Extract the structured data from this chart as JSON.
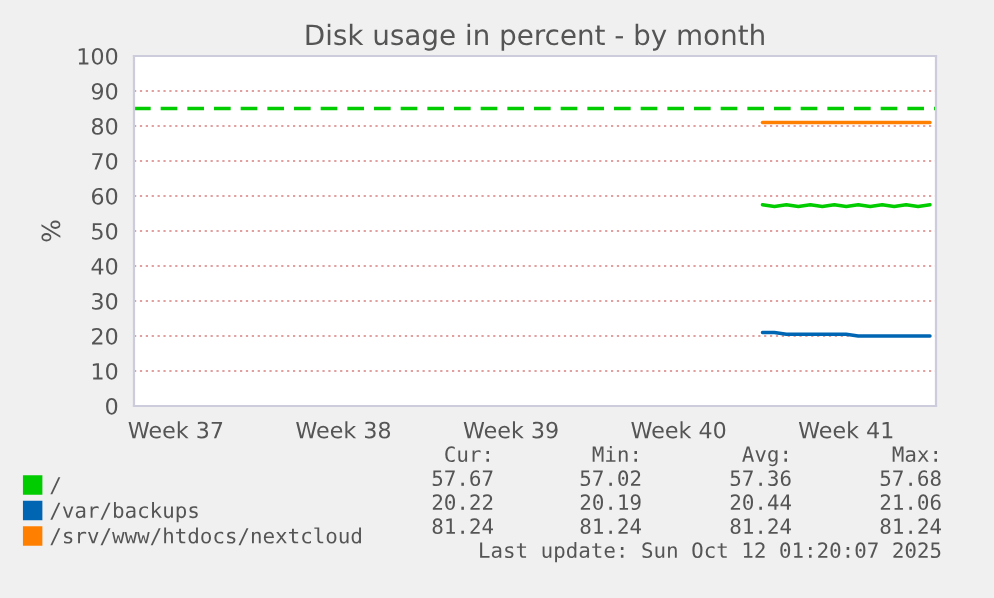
{
  "chart_data": {
    "type": "line",
    "title": "Disk usage in percent - by month",
    "ylabel": "%",
    "categories": [
      null,
      null,
      null,
      "Week 37",
      null,
      null,
      null,
      null,
      null,
      null,
      null,
      null,
      null,
      null,
      null,
      null,
      null,
      "Week 38",
      null,
      null,
      null,
      null,
      null,
      null,
      null,
      null,
      null,
      null,
      null,
      null,
      null,
      "Week 39",
      null,
      null,
      null,
      null,
      null,
      null,
      null,
      null,
      null,
      null,
      null,
      null,
      null,
      "Week 40",
      null,
      null,
      null,
      null,
      null,
      null,
      null,
      null,
      null,
      null,
      null,
      null,
      null,
      "Week 41",
      null,
      null,
      null,
      null,
      null,
      null,
      null
    ],
    "ylim": [
      0,
      100
    ],
    "yticks": [
      0,
      10,
      20,
      30,
      40,
      50,
      60,
      70,
      80,
      90,
      100
    ],
    "grid": "y",
    "legend": "bottom",
    "series": [
      {
        "name": "/",
        "color": "#00cc00",
        "values": [
          null,
          null,
          null,
          null,
          null,
          null,
          null,
          null,
          null,
          null,
          null,
          null,
          null,
          null,
          null,
          null,
          null,
          null,
          null,
          null,
          null,
          null,
          null,
          null,
          null,
          null,
          null,
          null,
          null,
          null,
          null,
          null,
          null,
          null,
          null,
          null,
          null,
          null,
          null,
          null,
          null,
          null,
          null,
          null,
          null,
          null,
          null,
          null,
          null,
          null,
          null,
          null,
          57.5,
          57,
          57.5,
          57,
          57.5,
          57,
          57.5,
          57,
          57.5,
          57,
          57.5,
          57,
          57.5,
          57,
          57.5
        ]
      },
      {
        "name": "/var/backups",
        "color": "#0066b3",
        "values": [
          null,
          null,
          null,
          null,
          null,
          null,
          null,
          null,
          null,
          null,
          null,
          null,
          null,
          null,
          null,
          null,
          null,
          null,
          null,
          null,
          null,
          null,
          null,
          null,
          null,
          null,
          null,
          null,
          null,
          null,
          null,
          null,
          null,
          null,
          null,
          null,
          null,
          null,
          null,
          null,
          null,
          null,
          null,
          null,
          null,
          null,
          null,
          null,
          null,
          null,
          null,
          null,
          21,
          21,
          20.5,
          20.5,
          20.5,
          20.5,
          20.5,
          20.5,
          20,
          20,
          20,
          20,
          20,
          20,
          20
        ]
      },
      {
        "name": "/srv/www/htdocs/nextcloud",
        "color": "#ff8000",
        "values": [
          null,
          null,
          null,
          null,
          null,
          null,
          null,
          null,
          null,
          null,
          null,
          null,
          null,
          null,
          null,
          null,
          null,
          null,
          null,
          null,
          null,
          null,
          null,
          null,
          null,
          null,
          null,
          null,
          null,
          null,
          null,
          null,
          null,
          null,
          null,
          null,
          null,
          null,
          null,
          null,
          null,
          null,
          null,
          null,
          null,
          null,
          null,
          null,
          null,
          null,
          null,
          null,
          81,
          81,
          81,
          81,
          81,
          81,
          81,
          81,
          81,
          81,
          81,
          81,
          81,
          81,
          81
        ]
      }
    ],
    "ref_lines": [
      {
        "axis": "y",
        "value": 85,
        "color": "#00cc00",
        "line_style": "dashed"
      }
    ],
    "annotations": [
      "Cur:",
      "Min:",
      "Avg:",
      "Max:",
      "57.67",
      "57.02",
      "57.36",
      "57.68",
      "20.22",
      "20.19",
      "20.44",
      "21.06",
      "81.24",
      "81.24",
      "81.24",
      "81.24",
      "Last update: Sun Oct 12 01:20:07 2025"
    ]
  }
}
